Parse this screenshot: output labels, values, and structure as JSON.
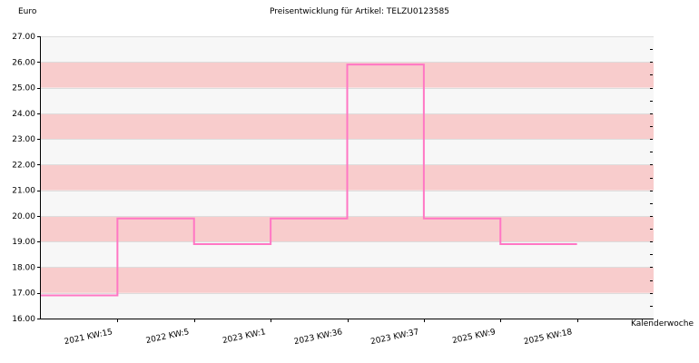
{
  "chart_data": {
    "type": "line",
    "step": true,
    "title": "Preisentwicklung für Artikel: TELZU0123585",
    "ylabel": "Euro",
    "xlabel": "Kalenderwoche",
    "ylim": [
      16,
      27
    ],
    "y_ticks": [
      "16.00",
      "17.00",
      "18.00",
      "19.00",
      "20.00",
      "21.00",
      "22.00",
      "23.00",
      "24.00",
      "25.00",
      "26.00",
      "27.00"
    ],
    "categories": [
      "2021 KW:15",
      "2022 KW:5",
      "2023 KW:1",
      "2023 KW:36",
      "2023 KW:37",
      "2025 KW:9",
      "2025 KW:18"
    ],
    "series": [
      {
        "values": [
          16.9,
          19.9,
          18.9,
          19.9,
          25.9,
          19.9,
          18.9
        ]
      }
    ],
    "grid": true,
    "band_colors": {
      "shaded": "#f8cccc",
      "plain": "#f7f7f7"
    },
    "line_color": "#ff77c4"
  }
}
